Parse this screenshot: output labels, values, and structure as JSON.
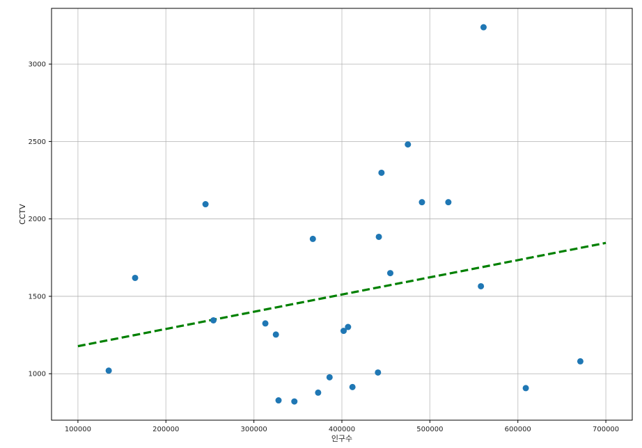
{
  "chart_data": {
    "type": "scatter",
    "title": "",
    "xlabel": "인구수",
    "ylabel": "CCTV",
    "xlim": [
      70000,
      730000
    ],
    "ylim": [
      700,
      3360
    ],
    "xticks": [
      100000,
      200000,
      300000,
      400000,
      500000,
      600000,
      700000
    ],
    "yticks": [
      1000,
      1500,
      2000,
      2500,
      3000
    ],
    "grid": true,
    "x": [
      135000,
      165000,
      245000,
      254000,
      313000,
      325000,
      328000,
      346000,
      367000,
      373000,
      386000,
      402000,
      407000,
      412000,
      441000,
      442000,
      445000,
      455000,
      475000,
      491000,
      521000,
      558000,
      561000,
      609000,
      671000
    ],
    "y": [
      1020,
      1619,
      2095,
      1345,
      1325,
      1253,
      828,
      821,
      1871,
      878,
      977,
      1277,
      1302,
      914,
      1008,
      1884,
      2298,
      1650,
      2481,
      2108,
      2108,
      1565,
      3238,
      907,
      1080
    ],
    "trend_line": {
      "x": [
        100000,
        700000
      ],
      "y": [
        1178,
        1845
      ]
    },
    "colors": {
      "points": "#1f77b4",
      "trend": "#008000",
      "grid": "#b0b0b0"
    }
  }
}
